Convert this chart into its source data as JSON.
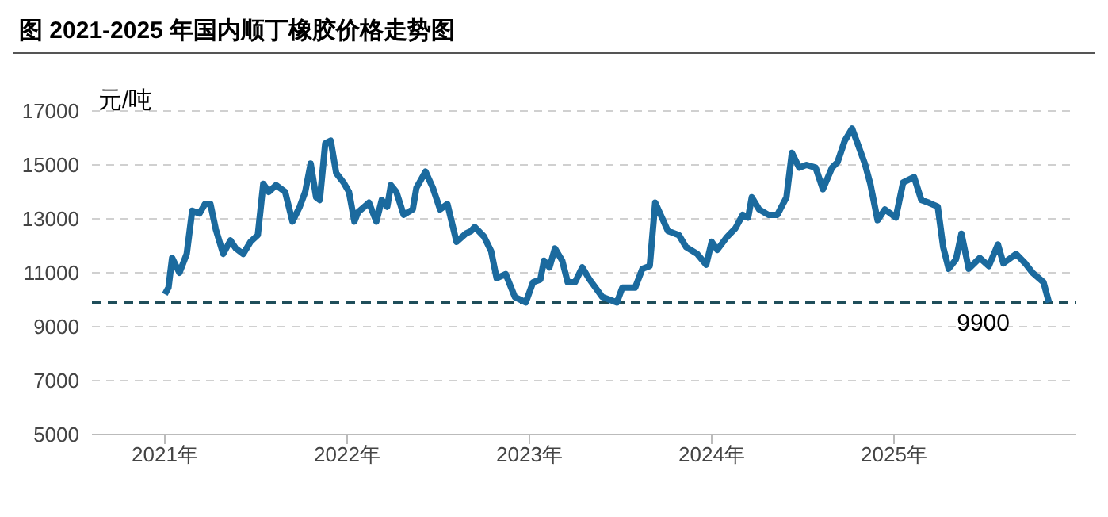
{
  "chart_data": {
    "type": "line",
    "title": "图 2021-2025 年国内顺丁橡胶价格走势图",
    "ylabel": "元/吨",
    "xlim": [
      2020.6,
      2026
    ],
    "xticks": [
      {
        "value": 2021,
        "label": "2021年"
      },
      {
        "value": 2022,
        "label": "2022年"
      },
      {
        "value": 2023,
        "label": "2023年"
      },
      {
        "value": 2024,
        "label": "2024年"
      },
      {
        "value": 2025,
        "label": "2025年"
      }
    ],
    "ylim": [
      5000,
      17000
    ],
    "yticks": [
      5000,
      7000,
      9000,
      11000,
      13000,
      15000,
      17000
    ],
    "grid": "y",
    "legend": false,
    "marker": "none",
    "ref_lines": [
      {
        "axis": "y",
        "value": 9900,
        "label": "9900",
        "color": "#1f4e5a",
        "line_style": "dashed"
      }
    ],
    "series": [
      {
        "color": "#1b6a9e",
        "x": [
          2021.0,
          2021.02,
          2021.04,
          2021.08,
          2021.12,
          2021.15,
          2021.19,
          2021.22,
          2021.25,
          2021.28,
          2021.32,
          2021.36,
          2021.39,
          2021.43,
          2021.47,
          2021.51,
          2021.54,
          2021.57,
          2021.61,
          2021.66,
          2021.7,
          2021.74,
          2021.77,
          2021.8,
          2021.83,
          2021.85,
          2021.88,
          2021.91,
          2021.94,
          2021.98,
          2022.01,
          2022.04,
          2022.06,
          2022.12,
          2022.16,
          2022.19,
          2022.22,
          2022.24,
          2022.27,
          2022.31,
          2022.36,
          2022.38,
          2022.43,
          2022.47,
          2022.51,
          2022.55,
          2022.6,
          2022.65,
          2022.68,
          2022.7,
          2022.75,
          2022.79,
          2022.82,
          2022.87,
          2022.92,
          2022.98,
          2023.02,
          2023.06,
          2023.08,
          2023.11,
          2023.14,
          2023.18,
          2023.21,
          2023.25,
          2023.29,
          2023.33,
          2023.4,
          2023.48,
          2023.51,
          2023.58,
          2023.62,
          2023.66,
          2023.69,
          2023.72,
          2023.76,
          2023.82,
          2023.86,
          2023.92,
          2023.97,
          2024.0,
          2024.03,
          2024.08,
          2024.13,
          2024.17,
          2024.2,
          2024.22,
          2024.26,
          2024.31,
          2024.36,
          2024.41,
          2024.44,
          2024.48,
          2024.52,
          2024.57,
          2024.61,
          2024.66,
          2024.69,
          2024.73,
          2024.77,
          2024.8,
          2024.84,
          2024.87,
          2024.91,
          2024.95,
          2025.01,
          2025.05,
          2025.11,
          2025.15,
          2025.19,
          2025.24,
          2025.27,
          2025.3,
          2025.34,
          2025.37,
          2025.41,
          2025.47,
          2025.52,
          2025.57,
          2025.6,
          2025.67,
          2025.72,
          2025.76,
          2025.82,
          2025.85
        ],
        "values": [
          10200,
          10450,
          11550,
          11000,
          11700,
          13300,
          13200,
          13550,
          13550,
          12600,
          11700,
          12200,
          11900,
          11700,
          12150,
          12400,
          14300,
          14000,
          14250,
          14000,
          12900,
          13450,
          14000,
          15050,
          13800,
          13700,
          15800,
          15900,
          14700,
          14350,
          14000,
          12900,
          13250,
          13600,
          12900,
          13700,
          13450,
          14250,
          14000,
          13150,
          13350,
          14150,
          14750,
          14150,
          13350,
          13550,
          12150,
          12450,
          12550,
          12700,
          12350,
          11800,
          10800,
          10950,
          10100,
          9900,
          10650,
          10750,
          11450,
          11200,
          11900,
          11450,
          10650,
          10650,
          11200,
          10750,
          10100,
          9900,
          10450,
          10450,
          11150,
          11250,
          13600,
          13150,
          12550,
          12400,
          11950,
          11700,
          11300,
          12150,
          11850,
          12300,
          12650,
          13150,
          13050,
          13800,
          13350,
          13150,
          13150,
          13800,
          15450,
          14900,
          15000,
          14900,
          14100,
          14900,
          15100,
          15900,
          16350,
          15800,
          15050,
          14300,
          12950,
          13350,
          13050,
          14350,
          14550,
          13700,
          13600,
          13450,
          11950,
          11150,
          11500,
          12450,
          11150,
          11550,
          11250,
          12050,
          11350,
          11700,
          11350,
          11000,
          10650,
          9900
        ]
      }
    ]
  }
}
